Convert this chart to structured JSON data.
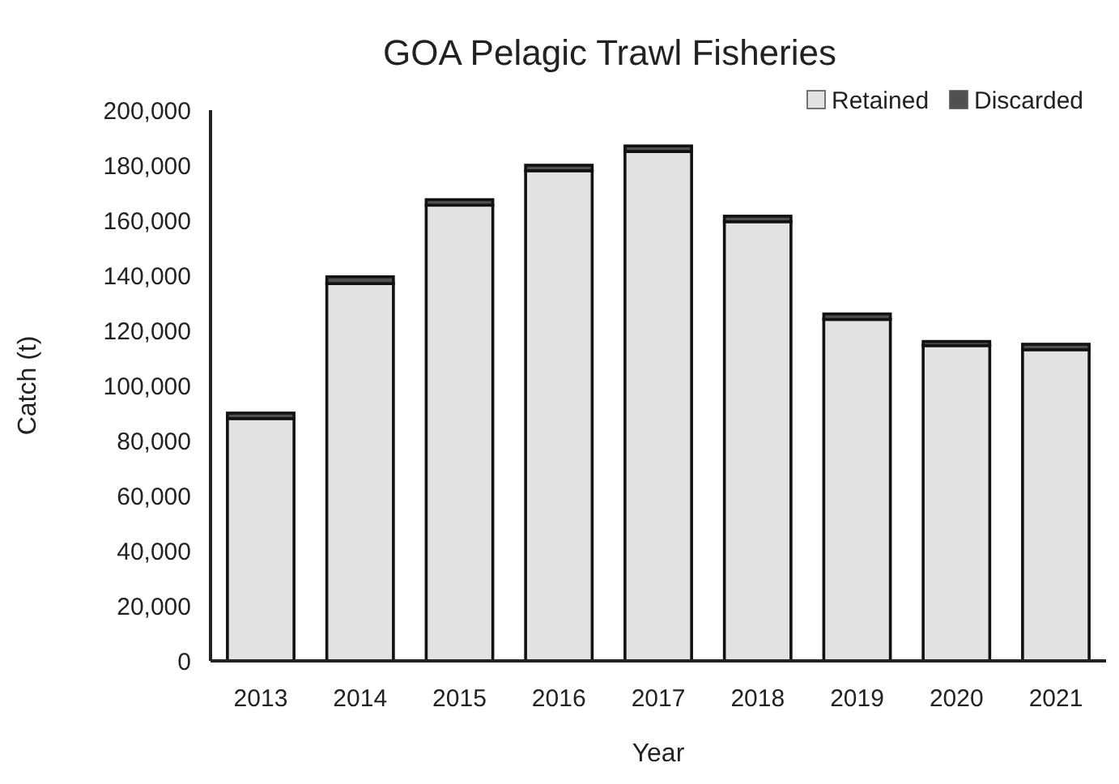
{
  "chart_data": {
    "type": "bar",
    "title": "GOA Pelagic Trawl Fisheries",
    "xlabel": "Year",
    "ylabel": "Catch (t)",
    "categories": [
      "2013",
      "2014",
      "2015",
      "2016",
      "2017",
      "2018",
      "2019",
      "2020",
      "2021"
    ],
    "stacked": true,
    "series": [
      {
        "name": "Retained",
        "color": "#e2e2e2",
        "values": [
          88000,
          137000,
          165500,
          178000,
          185000,
          159500,
          124000,
          114500,
          113000
        ]
      },
      {
        "name": "Discarded",
        "color": "#505050",
        "values": [
          2000,
          2500,
          2000,
          2000,
          2000,
          2000,
          2000,
          1500,
          2000
        ]
      }
    ],
    "ylim": [
      0,
      200000
    ],
    "yticks": [
      {
        "value": 0,
        "label": "0"
      },
      {
        "value": 20000,
        "label": "20,000"
      },
      {
        "value": 40000,
        "label": "40,000"
      },
      {
        "value": 60000,
        "label": "60,000"
      },
      {
        "value": 80000,
        "label": "80,000"
      },
      {
        "value": 100000,
        "label": "100,000"
      },
      {
        "value": 120000,
        "label": "120,000"
      },
      {
        "value": 140000,
        "label": "140,000"
      },
      {
        "value": 160000,
        "label": "160,000"
      },
      {
        "value": 180000,
        "label": "180,000"
      },
      {
        "value": 200000,
        "label": "200,000"
      }
    ],
    "legend": "top right"
  }
}
